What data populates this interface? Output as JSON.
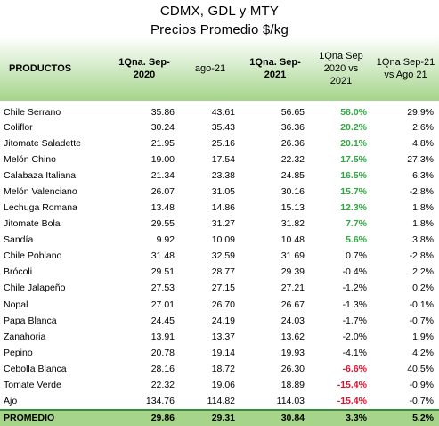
{
  "title": "CDMX, GDL y MTY",
  "subtitle": "Precios Promedio $/kg",
  "headers": [
    "PRODUCTOS",
    "1Qna. Sep-2020",
    "ago-21",
    "1Qna. Sep-2021",
    "1Qna Sep 2020 vs 2021",
    "1Qna Sep-21 vs Ago 21"
  ],
  "rows": [
    [
      "Chile Serrano",
      "35.86",
      "43.61",
      "56.65",
      "58.0%",
      "29.9%"
    ],
    [
      "Coliflor",
      "30.24",
      "35.43",
      "36.36",
      "20.2%",
      "2.6%"
    ],
    [
      "Jitomate Saladette",
      "21.95",
      "25.16",
      "26.36",
      "20.1%",
      "4.8%"
    ],
    [
      "Melón Chino",
      "19.00",
      "17.54",
      "22.32",
      "17.5%",
      "27.3%"
    ],
    [
      "Calabaza Italiana",
      "21.34",
      "23.38",
      "24.85",
      "16.5%",
      "6.3%"
    ],
    [
      "Melón Valenciano",
      "26.07",
      "31.05",
      "30.16",
      "15.7%",
      "-2.8%"
    ],
    [
      "Lechuga Romana",
      "13.48",
      "14.86",
      "15.13",
      "12.3%",
      "1.8%"
    ],
    [
      "Jitomate Bola",
      "29.55",
      "31.27",
      "31.82",
      "7.7%",
      "1.8%"
    ],
    [
      "Sandía",
      "9.92",
      "10.09",
      "10.48",
      "5.6%",
      "3.8%"
    ],
    [
      "Chile Poblano",
      "31.48",
      "32.59",
      "31.69",
      "0.7%",
      "-2.8%"
    ],
    [
      "Brócoli",
      "29.51",
      "28.77",
      "29.39",
      "-0.4%",
      "2.2%"
    ],
    [
      "Chile Jalapeño",
      "27.53",
      "27.15",
      "27.21",
      "-1.2%",
      "0.2%"
    ],
    [
      "Nopal",
      "27.01",
      "26.70",
      "26.67",
      "-1.3%",
      "-0.1%"
    ],
    [
      "Papa Blanca",
      "24.45",
      "24.19",
      "24.03",
      "-1.7%",
      "-0.7%"
    ],
    [
      "Zanahoria",
      "13.91",
      "13.37",
      "13.62",
      "-2.0%",
      "1.9%"
    ],
    [
      "Pepino",
      "20.78",
      "19.14",
      "19.93",
      "-4.1%",
      "4.2%"
    ],
    [
      "Cebolla Blanca",
      "28.16",
      "18.72",
      "26.30",
      "-6.6%",
      "40.5%"
    ],
    [
      "Tomate Verde",
      "22.32",
      "19.06",
      "18.89",
      "-15.4%",
      "-0.9%"
    ],
    [
      "Ajo",
      "134.76",
      "114.82",
      "114.03",
      "-15.4%",
      "-0.7%"
    ]
  ],
  "highlight": [
    "pos",
    "pos",
    "pos",
    "pos",
    "pos",
    "pos",
    "pos",
    "pos",
    "pos",
    "",
    "",
    "",
    "",
    "",
    "",
    "",
    "neg",
    "neg",
    "neg"
  ],
  "footer": [
    "PROMEDIO",
    "29.86",
    "29.31",
    "30.84",
    "3.3%",
    "5.2%"
  ],
  "colors": {
    "header_green": "#a5d48a",
    "positive": "#2daa3f",
    "negative": "#e0102a"
  }
}
